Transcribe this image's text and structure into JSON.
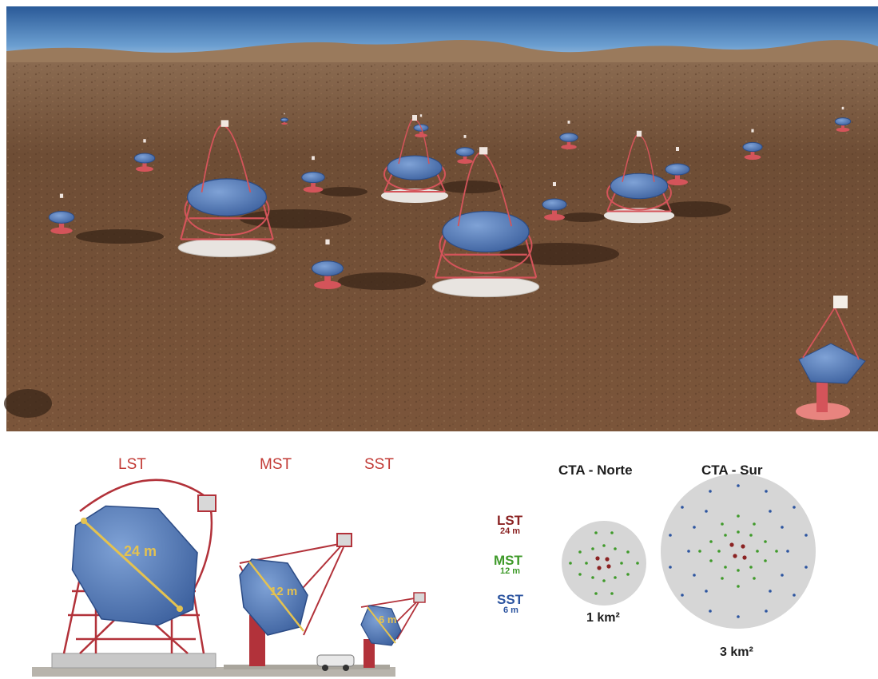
{
  "telescopes": {
    "lst": {
      "name": "LST",
      "size_label": "24 m"
    },
    "mst": {
      "name": "MST",
      "size_label": "12 m"
    },
    "sst": {
      "name": "SST",
      "size_label": "6 m"
    }
  },
  "legend": [
    {
      "name": "LST",
      "size": "24 m",
      "color": "#8b2323"
    },
    {
      "name": "MST",
      "size": "12 m",
      "color": "#3f9a2a"
    },
    {
      "name": "SST",
      "size": "6 m",
      "color": "#2d55a0"
    }
  ],
  "sites": {
    "north": {
      "name": "CTA - Norte",
      "area_text": "1 km²"
    },
    "south": {
      "name": "CTA - Sur",
      "area_text": "3 km²"
    }
  },
  "colors": {
    "sky_top": "#2f5f9c",
    "ground": "#7a5234",
    "structure": "#d4545a",
    "mirror": "#5b7fb8",
    "site_disc": "#d6d6d6"
  }
}
